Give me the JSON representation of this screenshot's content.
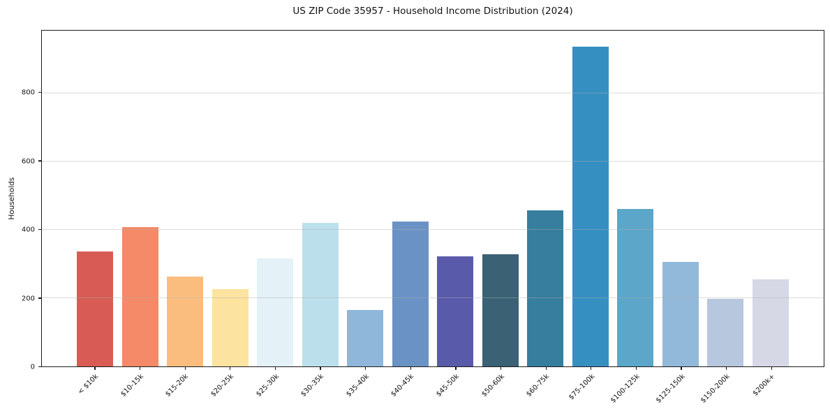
{
  "title": "US ZIP Code 35957 - Household Income Distribution (2024)",
  "ylabel": "Households",
  "chart_data": {
    "type": "bar",
    "title": "US ZIP Code 35957 - Household Income Distribution (2024)",
    "xlabel": "",
    "ylabel": "Households",
    "categories": [
      "< $10k",
      "$10-15k",
      "$15-20k",
      "$20-25k",
      "$25-30k",
      "$30-35k",
      "$35-40k",
      "$40-45k",
      "$45-50k",
      "$50-60k",
      "$60-75k",
      "$75-100k",
      "$100-125k",
      "$125-150k",
      "$150-200k",
      "$200k+"
    ],
    "values": [
      337,
      408,
      263,
      227,
      316,
      420,
      166,
      425,
      323,
      328,
      457,
      936,
      460,
      305,
      198,
      254
    ],
    "bar_colors": [
      "#d85c55",
      "#f48a67",
      "#fbbd7e",
      "#fce3a0",
      "#e4f1f7",
      "#bcdfec",
      "#8fb7d9",
      "#6b92c5",
      "#5a5aab",
      "#3a6274",
      "#377d9e",
      "#368fc1",
      "#5ba6c9",
      "#93b9da",
      "#b7c7dd",
      "#d6d8e6"
    ],
    "yticks": [
      0,
      200,
      400,
      600,
      800
    ],
    "ylim": [
      0,
      983
    ],
    "grid": "horizontal",
    "grid_color": "#e9e9e9",
    "axis_color": "#1a1a1a",
    "background": "#ffffff",
    "legend": "none",
    "x_tick_rotation_deg": 45
  }
}
